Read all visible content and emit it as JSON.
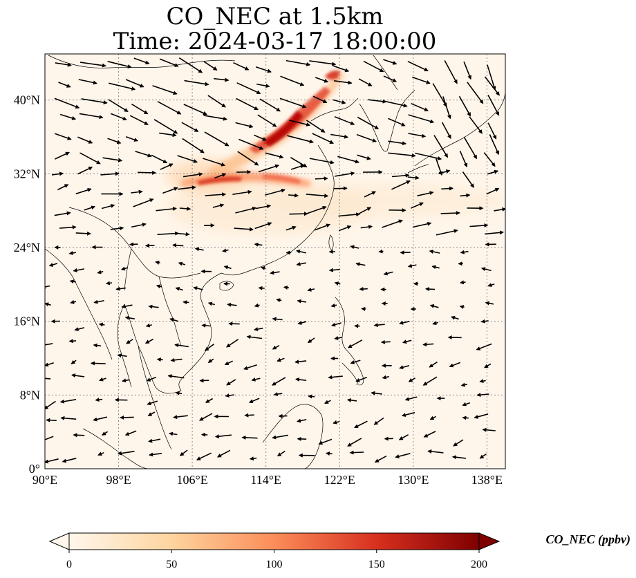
{
  "title": {
    "line1": "CO_NEC at 1.5km",
    "line2": "Time: 2024-03-17 18:00:00"
  },
  "map": {
    "lon_range": [
      90,
      140
    ],
    "lat_range": [
      0,
      45
    ],
    "lon_ticks": [
      "90°E",
      "98°E",
      "106°E",
      "114°E",
      "122°E",
      "130°E",
      "138°E"
    ],
    "lon_tick_values": [
      90,
      98,
      106,
      114,
      122,
      130,
      138
    ],
    "lat_ticks": [
      "0°",
      "8°N",
      "16°N",
      "24°N",
      "32°N",
      "40°N"
    ],
    "lat_tick_values": [
      0,
      8,
      16,
      24,
      32,
      40
    ],
    "gridlines": true,
    "field": "CO_NEC",
    "level": "1.5km",
    "wind_vectors": true
  },
  "colorbar": {
    "label": "CO_NEC (ppbv)",
    "min": 0,
    "max": 200,
    "ticks": [
      "0",
      "50",
      "100",
      "150",
      "200"
    ],
    "tick_values": [
      0,
      50,
      100,
      150,
      200
    ],
    "colormap": "OrRd",
    "colors": [
      "#fff7ec",
      "#fdd49e",
      "#fc8d59",
      "#d7301f",
      "#7f0000"
    ],
    "extend": "both"
  }
}
